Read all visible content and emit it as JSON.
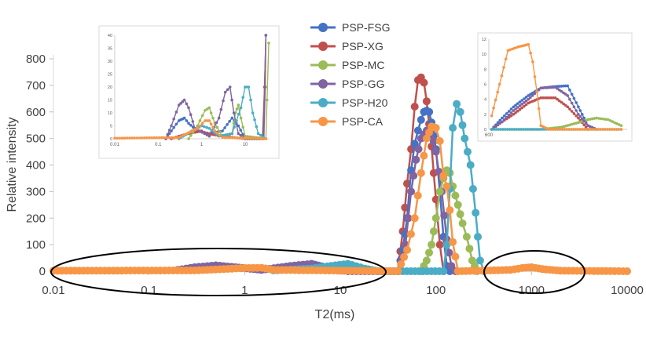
{
  "chart_data": {
    "type": "line",
    "xlabel": "T2(ms)",
    "ylabel": "Relative intensity",
    "xscale": "log",
    "xlim": [
      0.01,
      10000
    ],
    "ylim": [
      0,
      800
    ],
    "x_ticks": [
      "0.01",
      "0.1",
      "1",
      "10",
      "100",
      "1000",
      "10000"
    ],
    "y_ticks": [
      "0",
      "100",
      "200",
      "300",
      "400",
      "500",
      "600",
      "700",
      "800"
    ],
    "legend_position": "top-center",
    "series": [
      {
        "name": "PSP-FSG",
        "color": "#4472C4",
        "points": [
          [
            40,
            0
          ],
          [
            45,
            80
          ],
          [
            50,
            200
          ],
          [
            55,
            380
          ],
          [
            60,
            480
          ],
          [
            65,
            530
          ],
          [
            70,
            570
          ],
          [
            75,
            600
          ],
          [
            80,
            605
          ],
          [
            85,
            600
          ],
          [
            90,
            560
          ],
          [
            100,
            460
          ],
          [
            110,
            300
          ],
          [
            120,
            130
          ],
          [
            130,
            20
          ],
          [
            140,
            0
          ]
        ]
      },
      {
        "name": "PSP-XG",
        "color": "#C0504D",
        "points": [
          [
            40,
            0
          ],
          [
            45,
            150
          ],
          [
            50,
            330
          ],
          [
            55,
            460
          ],
          [
            60,
            620
          ],
          [
            65,
            720
          ],
          [
            70,
            730
          ],
          [
            75,
            710
          ],
          [
            80,
            640
          ],
          [
            90,
            470
          ],
          [
            100,
            270
          ],
          [
            110,
            100
          ],
          [
            120,
            0
          ]
        ]
      },
      {
        "name": "PSP-MC",
        "color": "#9BBB59",
        "points": [
          [
            70,
            0
          ],
          [
            80,
            40
          ],
          [
            90,
            100
          ],
          [
            100,
            200
          ],
          [
            110,
            300
          ],
          [
            120,
            350
          ],
          [
            130,
            380
          ],
          [
            140,
            370
          ],
          [
            150,
            320
          ],
          [
            170,
            250
          ],
          [
            190,
            180
          ],
          [
            210,
            130
          ],
          [
            240,
            40
          ],
          [
            270,
            0
          ]
        ]
      },
      {
        "name": "PSP-GG",
        "color": "#8064A2",
        "points": [
          [
            0.2,
            5
          ],
          [
            0.3,
            15
          ],
          [
            0.5,
            22
          ],
          [
            0.8,
            15
          ],
          [
            1.5,
            5
          ],
          [
            3,
            20
          ],
          [
            5,
            28
          ],
          [
            7,
            15
          ],
          [
            12,
            0
          ],
          [
            40,
            0
          ],
          [
            48,
            100
          ],
          [
            55,
            300
          ],
          [
            62,
            420
          ],
          [
            70,
            500
          ],
          [
            80,
            530
          ],
          [
            90,
            530
          ],
          [
            100,
            450
          ],
          [
            115,
            300
          ],
          [
            130,
            120
          ],
          [
            145,
            20
          ],
          [
            160,
            0
          ]
        ]
      },
      {
        "name": "PSP-H20",
        "color": "#4BACC6",
        "points": [
          [
            2,
            3
          ],
          [
            5,
            10
          ],
          [
            8,
            20
          ],
          [
            12,
            28
          ],
          [
            18,
            10
          ],
          [
            25,
            0
          ],
          [
            120,
            0
          ],
          [
            130,
            100
          ],
          [
            140,
            310
          ],
          [
            150,
            540
          ],
          [
            165,
            630
          ],
          [
            180,
            600
          ],
          [
            200,
            500
          ],
          [
            230,
            400
          ],
          [
            260,
            220
          ],
          [
            290,
            40
          ],
          [
            320,
            0
          ]
        ]
      },
      {
        "name": "PSP-CA",
        "color": "#F79646",
        "points": [
          [
            0.01,
            2
          ],
          [
            0.3,
            3
          ],
          [
            1,
            12
          ],
          [
            1.5,
            13
          ],
          [
            2,
            5
          ],
          [
            40,
            0
          ],
          [
            50,
            80
          ],
          [
            60,
            200
          ],
          [
            70,
            370
          ],
          [
            80,
            500
          ],
          [
            90,
            545
          ],
          [
            100,
            540
          ],
          [
            110,
            490
          ],
          [
            120,
            360
          ],
          [
            130,
            320
          ],
          [
            140,
            230
          ],
          [
            150,
            110
          ],
          [
            170,
            0
          ],
          [
            600,
            5
          ],
          [
            800,
            12
          ],
          [
            1000,
            15
          ],
          [
            1300,
            8
          ],
          [
            2000,
            2
          ],
          [
            10000,
            0
          ]
        ]
      }
    ],
    "inset_left": {
      "xscale": "log",
      "xlim": [
        0.01,
        35
      ],
      "ylim": [
        0,
        40
      ],
      "x_ticks": [
        "0.01",
        "0.1",
        "1",
        "10"
      ],
      "y_ticks": [
        "0",
        "5",
        "10",
        "15",
        "20",
        "25",
        "30",
        "35",
        "40"
      ],
      "series": [
        {
          "name": "PSP-FSG",
          "color": "#4472C4",
          "points": [
            [
              0.15,
              0
            ],
            [
              0.2,
              3
            ],
            [
              0.3,
              7
            ],
            [
              0.4,
              8
            ],
            [
              0.5,
              6
            ],
            [
              0.8,
              3
            ],
            [
              1.5,
              2
            ],
            [
              3,
              3
            ],
            [
              5,
              8
            ],
            [
              7,
              5
            ],
            [
              10,
              0
            ],
            [
              25,
              0
            ],
            [
              28,
              20
            ],
            [
              30,
              40
            ]
          ]
        },
        {
          "name": "PSP-XG",
          "color": "#C0504D",
          "points": [
            [
              0.2,
              0
            ],
            [
              0.3,
              1
            ],
            [
              0.5,
              2
            ],
            [
              1,
              3
            ],
            [
              1.3,
              2
            ],
            [
              3,
              1
            ],
            [
              10,
              0
            ],
            [
              26,
              0
            ],
            [
              28,
              20
            ],
            [
              30,
              40
            ]
          ]
        },
        {
          "name": "PSP-MC",
          "color": "#9BBB59",
          "points": [
            [
              0.5,
              0
            ],
            [
              0.8,
              5
            ],
            [
              1.2,
              11
            ],
            [
              1.5,
              12
            ],
            [
              2,
              6
            ],
            [
              3,
              1
            ],
            [
              5,
              2
            ],
            [
              6,
              10
            ],
            [
              7,
              13
            ],
            [
              8,
              8
            ],
            [
              10,
              1
            ],
            [
              30,
              0
            ],
            [
              32,
              15
            ],
            [
              35,
              37
            ]
          ]
        },
        {
          "name": "PSP-GG",
          "color": "#8064A2",
          "points": [
            [
              0.15,
              0
            ],
            [
              0.2,
              5
            ],
            [
              0.3,
              13
            ],
            [
              0.4,
              15
            ],
            [
              0.5,
              12
            ],
            [
              0.7,
              4
            ],
            [
              1.5,
              1
            ],
            [
              2.5,
              8
            ],
            [
              3.5,
              18
            ],
            [
              4.5,
              20
            ],
            [
              5.5,
              10
            ],
            [
              7,
              2
            ],
            [
              10,
              0
            ],
            [
              27,
              0
            ],
            [
              29,
              20
            ],
            [
              30,
              40
            ]
          ]
        },
        {
          "name": "PSP-H20",
          "color": "#4BACC6",
          "points": [
            [
              0.3,
              0
            ],
            [
              0.6,
              3
            ],
            [
              1,
              5
            ],
            [
              1.5,
              4
            ],
            [
              2.5,
              1
            ],
            [
              5,
              2
            ],
            [
              8,
              12
            ],
            [
              10,
              20
            ],
            [
              12,
              20
            ],
            [
              15,
              10
            ],
            [
              20,
              2
            ],
            [
              30,
              0
            ]
          ]
        },
        {
          "name": "PSP-CA",
          "color": "#F79646",
          "points": [
            [
              0.01,
              0.2
            ],
            [
              0.3,
              0.5
            ],
            [
              0.8,
              4
            ],
            [
              1.2,
              7
            ],
            [
              1.5,
              7
            ],
            [
              2,
              3
            ],
            [
              3,
              0.5
            ],
            [
              30,
              0
            ]
          ]
        }
      ]
    },
    "inset_right": {
      "xscale": "log",
      "xlim": [
        600,
        3000
      ],
      "ylim": [
        0,
        12
      ],
      "x_ticks": [
        "600"
      ],
      "y_ticks": [
        "0",
        "2",
        "4",
        "6",
        "8",
        "10",
        "12"
      ],
      "series": [
        {
          "name": "PSP-FSG",
          "color": "#4472C4",
          "points": [
            [
              620,
              0
            ],
            [
              700,
              1.5
            ],
            [
              800,
              3
            ],
            [
              950,
              4.5
            ],
            [
              1100,
              5.5
            ],
            [
              1300,
              5.7
            ],
            [
              1500,
              5.8
            ],
            [
              1700,
              3
            ],
            [
              1900,
              0.5
            ],
            [
              2100,
              0
            ]
          ]
        },
        {
          "name": "PSP-XG",
          "color": "#C0504D",
          "points": [
            [
              620,
              0
            ],
            [
              700,
              1
            ],
            [
              800,
              2
            ],
            [
              950,
              3.5
            ],
            [
              1100,
              4.2
            ],
            [
              1300,
              4.2
            ],
            [
              1500,
              3
            ],
            [
              1700,
              1.5
            ],
            [
              1900,
              0
            ]
          ]
        },
        {
          "name": "PSP-MC",
          "color": "#9BBB59",
          "points": [
            [
              620,
              0
            ],
            [
              1100,
              0
            ],
            [
              1400,
              0.3
            ],
            [
              1700,
              0.9
            ],
            [
              1900,
              1.3
            ],
            [
              2100,
              1.5
            ],
            [
              2400,
              1.3
            ],
            [
              2800,
              0.5
            ]
          ]
        },
        {
          "name": "PSP-GG",
          "color": "#8064A2",
          "points": [
            [
              620,
              0
            ],
            [
              700,
              1
            ],
            [
              800,
              2.5
            ],
            [
              950,
              4
            ],
            [
              1100,
              5.5
            ],
            [
              1300,
              5.6
            ],
            [
              1500,
              4.5
            ],
            [
              1700,
              2
            ],
            [
              1900,
              0.5
            ],
            [
              2100,
              0
            ]
          ]
        },
        {
          "name": "PSP-H20",
          "color": "#4BACC6",
          "points": [
            [
              620,
              0
            ],
            [
              2800,
              0
            ]
          ]
        },
        {
          "name": "PSP-CA",
          "color": "#F79646",
          "points": [
            [
              620,
              1.8
            ],
            [
              680,
              6
            ],
            [
              750,
              10.5
            ],
            [
              850,
              11
            ],
            [
              950,
              11.3
            ],
            [
              1000,
              9
            ],
            [
              1050,
              5
            ],
            [
              1100,
              0.5
            ],
            [
              1200,
              0
            ],
            [
              2800,
              0
            ]
          ]
        }
      ]
    }
  }
}
